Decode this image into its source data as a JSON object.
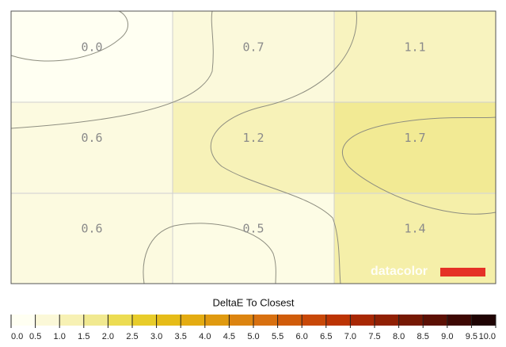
{
  "chart_data": {
    "type": "heatmap",
    "title": "DeltaE To Closest",
    "watermark": "datacolor",
    "values": [
      [
        0,
        0.7,
        1.1
      ],
      [
        0.6,
        1.2,
        1.7
      ],
      [
        0.6,
        0.5,
        1.4
      ]
    ],
    "value_labels": [
      [
        "0.0",
        "0.7",
        "1.1"
      ],
      [
        "0.6",
        "1.2",
        "1.7"
      ],
      [
        "0.6",
        "0.5",
        "1.4"
      ]
    ],
    "colorbar": {
      "ticks": [
        {
          "value": 0,
          "label": "0.0"
        },
        0.5,
        {
          "value": 1,
          "label": "1.0"
        },
        1.5,
        {
          "value": 2,
          "label": "2.0"
        },
        2.5,
        {
          "value": 3,
          "label": "3.0"
        },
        3.5,
        {
          "value": 4,
          "label": "4.0"
        },
        4.5,
        {
          "value": 5,
          "label": "5.0"
        },
        5.5,
        {
          "value": 6,
          "label": "6.0"
        },
        6.5,
        {
          "value": 7,
          "label": "7.0"
        },
        7.5,
        {
          "value": 8,
          "label": "8.0"
        },
        8.5,
        {
          "value": 9,
          "label": "9.0"
        },
        9.5,
        {
          "value": 10,
          "label": "10.0"
        }
      ],
      "colors": [
        "#fffff2",
        "#fbf8d8",
        "#f7f1b4",
        "#f1e990",
        "#ecdc52",
        "#e8cc2a",
        "#e6bc18",
        "#e4ac12",
        "#e09a10",
        "#dc8410",
        "#d87010",
        "#d05c0a",
        "#c84808",
        "#bc3404",
        "#a82804",
        "#902004",
        "#761804",
        "#5c1004",
        "#3e0804",
        "#200404"
      ]
    }
  }
}
